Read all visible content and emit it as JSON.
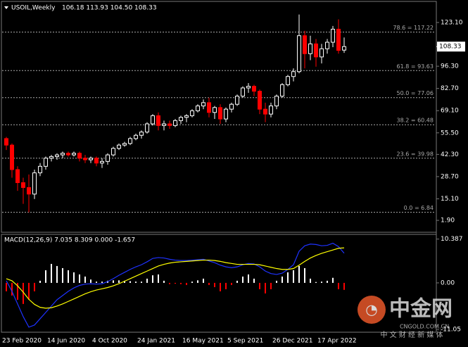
{
  "chart_data": [
    {
      "type": "candlestick",
      "title": "USOIL,Weekly",
      "ohlc_text": "106.18 113.93 104.50 108.33",
      "categories": [
        "23 Feb 2020",
        null,
        null,
        null,
        null,
        null,
        null,
        null,
        "14 Jun 2020",
        null,
        null,
        null,
        null,
        null,
        null,
        null,
        "4 Oct 2020",
        null,
        null,
        null,
        null,
        null,
        null,
        null,
        "24 Jan 2021",
        null,
        null,
        null,
        null,
        null,
        null,
        null,
        "16 May 2021",
        null,
        null,
        null,
        null,
        null,
        null,
        null,
        "5 Sep 2021",
        null,
        null,
        null,
        null,
        null,
        null,
        null,
        "26 Dec 2021",
        null,
        null,
        null,
        null,
        null,
        null,
        null,
        "17 Apr 2022",
        null,
        null,
        null,
        null
      ],
      "open": [
        52,
        48,
        33,
        25,
        22,
        18,
        31,
        35,
        40,
        41,
        42,
        43,
        42,
        43,
        40,
        39,
        40,
        37,
        38,
        42,
        46,
        48,
        49,
        52,
        54,
        56,
        61,
        66,
        60,
        61,
        60,
        63,
        65,
        66,
        69,
        72,
        74,
        68,
        71,
        64,
        70,
        73,
        78,
        83,
        84,
        81,
        70,
        67,
        72,
        78,
        85,
        90,
        93,
        115,
        104,
        110,
        102,
        107,
        111,
        119,
        106.18
      ],
      "high": [
        53,
        49,
        35,
        28,
        30,
        33,
        37,
        41,
        42,
        43,
        44,
        44,
        44,
        44,
        42,
        41,
        41,
        40,
        43,
        47,
        49,
        50,
        53,
        55,
        57,
        62,
        67,
        68,
        63,
        63,
        64,
        66,
        67,
        70,
        73,
        76,
        77,
        72,
        73,
        71,
        74,
        79,
        84,
        86,
        85,
        82,
        74,
        74,
        79,
        86,
        91,
        95,
        128,
        118,
        115,
        113,
        110,
        113,
        121,
        125,
        113.93
      ],
      "low": [
        45,
        28,
        20,
        12,
        6.8,
        15,
        29,
        33,
        38,
        39,
        40,
        41,
        41,
        38,
        37,
        37,
        35,
        34,
        36,
        41,
        45,
        47,
        48,
        51,
        52,
        55,
        60,
        57,
        57,
        58,
        59,
        61,
        62,
        65,
        68,
        70,
        65,
        64,
        61,
        62,
        68,
        72,
        77,
        80,
        78,
        67,
        62,
        65,
        70,
        77,
        84,
        87,
        92,
        95,
        100,
        96,
        98,
        104,
        108,
        104,
        104.5
      ],
      "close": [
        48,
        33,
        25,
        22,
        18,
        31,
        35,
        40,
        41,
        42,
        43,
        42,
        43,
        40,
        39,
        40,
        37,
        38,
        42,
        46,
        48,
        49,
        52,
        54,
        56,
        61,
        66,
        60,
        61,
        60,
        63,
        65,
        66,
        69,
        72,
        74,
        68,
        71,
        64,
        70,
        73,
        78,
        83,
        84,
        81,
        70,
        67,
        72,
        78,
        85,
        90,
        93,
        115,
        104,
        110,
        102,
        107,
        111,
        119,
        106,
        108.33
      ],
      "up_color": "#ffffff",
      "down_color": "#ff0000",
      "ylim": [
        -4.1,
        131.7
      ],
      "yticks": [
        {
          "value": 123.1,
          "label": "123.10"
        },
        {
          "value": 96.3,
          "label": "96.30"
        },
        {
          "value": 82.7,
          "label": "82.70"
        },
        {
          "value": 69.1,
          "label": "69.10"
        },
        {
          "value": 55.5,
          "label": "55.50"
        },
        {
          "value": 42.3,
          "label": "42.30"
        },
        {
          "value": 28.7,
          "label": "28.70"
        },
        {
          "value": 15.1,
          "label": "15.10"
        },
        {
          "value": 1.9,
          "label": "1.90"
        }
      ],
      "levels": [
        {
          "value": 117.22,
          "label": "78.6 = 117.22"
        },
        {
          "value": 93.63,
          "label": "61.8 = 93.63"
        },
        {
          "value": 77.06,
          "label": "50.0 = 77.06"
        },
        {
          "value": 60.48,
          "label": "38.2 = 60.48"
        },
        {
          "value": 39.98,
          "label": "23.6 = 39.98"
        },
        {
          "value": 6.84,
          "label": "0.0 = 6.84"
        }
      ],
      "current_price": {
        "value": 108.33,
        "label": "108.33"
      }
    },
    {
      "type": "macd",
      "title": "MACD(12,26,9) 7.035 8.309 0.000 -1.657",
      "macd": [
        0.5,
        -2,
        -5,
        -8,
        -10.5,
        -10,
        -8.5,
        -7,
        -5.5,
        -4,
        -3,
        -2,
        -1.2,
        -0.6,
        -0.3,
        -0.2,
        -0.3,
        -0.2,
        0.3,
        1,
        1.8,
        2.5,
        3.2,
        3.8,
        4.3,
        5,
        5.8,
        6,
        5.9,
        5.6,
        5.4,
        5.3,
        5.3,
        5.4,
        5.5,
        5.6,
        5.2,
        4.8,
        4.2,
        3.8,
        3.6,
        3.8,
        4.3,
        4.6,
        4.5,
        3.8,
        2.8,
        2.2,
        2,
        2.3,
        3.2,
        4.3,
        7.5,
        8.8,
        9.2,
        9.1,
        8.8,
        8.9,
        9.4,
        8.6,
        7.035
      ],
      "signal": [
        1,
        0.5,
        -0.7,
        -2.2,
        -3.9,
        -5.1,
        -5.8,
        -6,
        -5.9,
        -5.5,
        -5,
        -4.4,
        -3.8,
        -3.2,
        -2.6,
        -2.1,
        -1.7,
        -1.4,
        -1.1,
        -0.7,
        -0.2,
        0.4,
        1,
        1.6,
        2.2,
        2.8,
        3.4,
        4,
        4.4,
        4.7,
        4.9,
        5,
        5.1,
        5.2,
        5.3,
        5.4,
        5.4,
        5.3,
        5.1,
        4.8,
        4.6,
        4.4,
        4.4,
        4.4,
        4.4,
        4.3,
        4,
        3.7,
        3.4,
        3.2,
        3.2,
        3.4,
        4.2,
        5.1,
        5.9,
        6.5,
        7,
        7.4,
        7.8,
        8.2,
        8.309
      ],
      "histogram": [
        -2,
        -3,
        -4,
        -5,
        -4,
        -2,
        0.5,
        3,
        4.5,
        4,
        3.5,
        3,
        2.5,
        2,
        1.5,
        0.8,
        0.3,
        0.3,
        0.5,
        0.6,
        0.6,
        0.5,
        0.4,
        0.3,
        0.3,
        1,
        1.8,
        2,
        0.5,
        -0.3,
        -0.2,
        -0.3,
        -0.5,
        0.3,
        0.6,
        1,
        -0.5,
        -1,
        -2,
        -1.5,
        -0.5,
        0.5,
        1.5,
        2,
        1,
        -1.5,
        -2.5,
        -1.5,
        0.5,
        1.5,
        2.5,
        3,
        4,
        3.5,
        1,
        0.2,
        0.3,
        0.5,
        1.2,
        -1.5,
        -1.657
      ],
      "macd_color": "#1e32ff",
      "signal_color": "#ffff00",
      "up_color": "#ffffff",
      "down_color": "#ff0000",
      "ylim": [
        -11.7,
        11.5
      ],
      "yticks": [
        10.387,
        {
          "value": 0,
          "label": "0.00"
        },
        -11.05
      ]
    }
  ],
  "watermark": {
    "brand": "中金网",
    "site": "CNGOLD.COM.CN",
    "slogan": "中 文 财 经 新 媒 体"
  }
}
